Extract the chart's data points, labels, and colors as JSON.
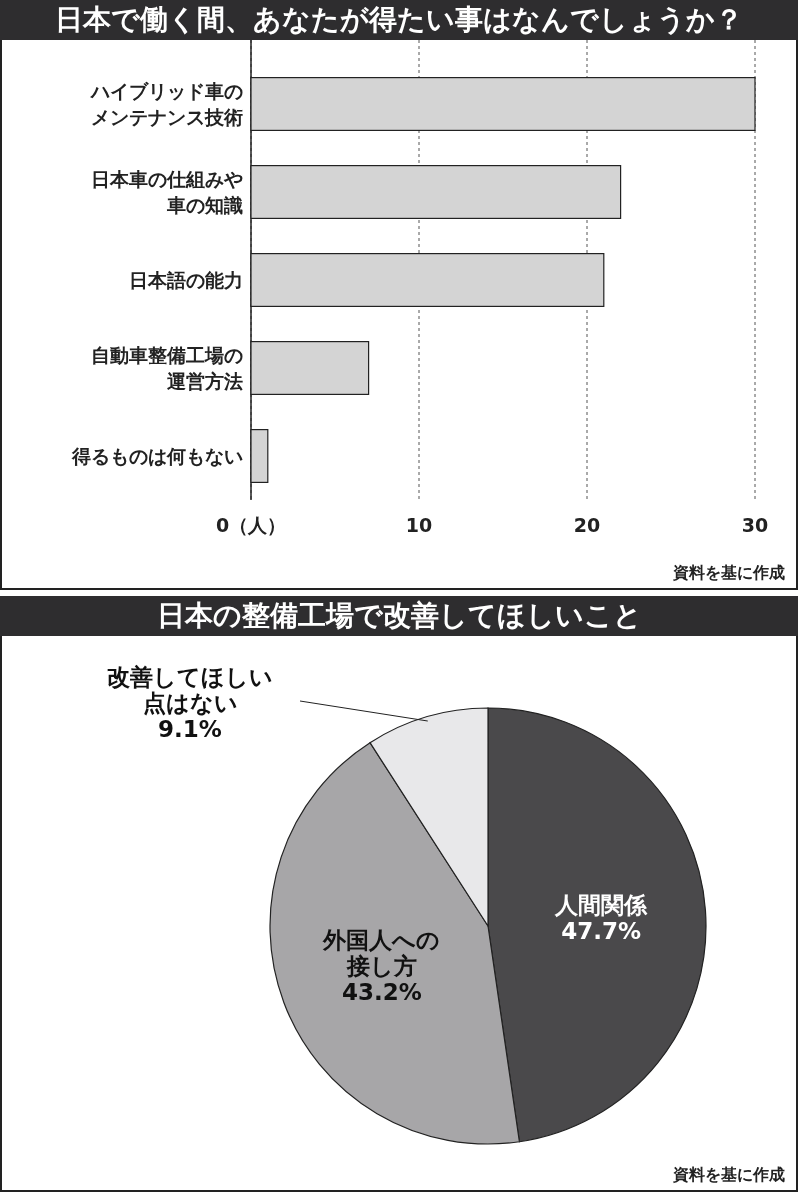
{
  "chart_data": [
    {
      "type": "bar",
      "orientation": "horizontal",
      "title": "日本で働く間、あなたが得たい事はなんでしょうか？",
      "categories": [
        "ハイブリッド車のメンテナンス技術",
        "日本車の仕組みや車の知識",
        "日本語の能力",
        "自動車整備工場の運営方法",
        "得るものは何もない"
      ],
      "values": [
        30,
        22,
        21,
        7,
        1
      ],
      "color": "#d4d4d4",
      "xlim": [
        0,
        30
      ],
      "xticks": [
        {
          "value": 0,
          "label": "0（人）"
        },
        10,
        20,
        30
      ],
      "grid": "x",
      "annotations": [
        "資料を基に作成"
      ]
    },
    {
      "type": "pie",
      "title": "日本の整備工場で改善してほしいこと",
      "categories": [
        "人間関係",
        "外国人への接し方",
        "改善してほしい点はない"
      ],
      "values": [
        47.7,
        43.2,
        9.1
      ],
      "value_labels": [
        "47.7%",
        "43.2%",
        "9.1%"
      ],
      "colors": [
        "#4a494b",
        "#a7a6a8",
        "#e8e8ea"
      ],
      "annotations": [
        "資料を基に作成"
      ]
    }
  ]
}
